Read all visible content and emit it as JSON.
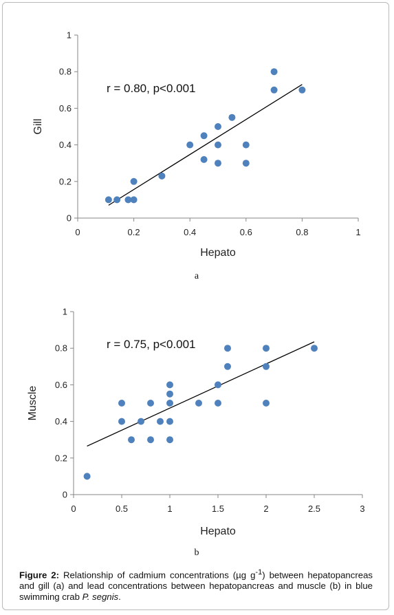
{
  "colors": {
    "point": "#4f81bd",
    "trendline": "#000000",
    "axis": "#868686"
  },
  "chart_data": [
    {
      "type": "scatter",
      "panel_label": "a",
      "xlabel": "Hepato",
      "ylabel": "Gill",
      "xlim": [
        0,
        1
      ],
      "ylim": [
        0,
        1
      ],
      "xticks": [
        "0",
        "0.2",
        "0.4",
        "0.6",
        "0.8",
        "1"
      ],
      "yticks": [
        "0",
        "0.2",
        "0.4",
        "0.6",
        "0.8",
        "1"
      ],
      "annotation": "r = 0.80, p<0.001",
      "trendline": [
        [
          0.11,
          0.07
        ],
        [
          0.8,
          0.73
        ]
      ],
      "points": [
        [
          0.11,
          0.1
        ],
        [
          0.14,
          0.1
        ],
        [
          0.18,
          0.1
        ],
        [
          0.2,
          0.1
        ],
        [
          0.2,
          0.2
        ],
        [
          0.3,
          0.23
        ],
        [
          0.4,
          0.4
        ],
        [
          0.45,
          0.45
        ],
        [
          0.45,
          0.32
        ],
        [
          0.5,
          0.5
        ],
        [
          0.5,
          0.4
        ],
        [
          0.5,
          0.3
        ],
        [
          0.55,
          0.55
        ],
        [
          0.6,
          0.4
        ],
        [
          0.6,
          0.3
        ],
        [
          0.7,
          0.8
        ],
        [
          0.7,
          0.7
        ],
        [
          0.8,
          0.7
        ]
      ]
    },
    {
      "type": "scatter",
      "panel_label": "b",
      "xlabel": "Hepato",
      "ylabel": "Muscle",
      "xlim": [
        0,
        3
      ],
      "ylim": [
        0,
        1
      ],
      "xticks": [
        "0",
        "0.5",
        "1",
        "1.5",
        "2",
        "2.5",
        "3"
      ],
      "yticks": [
        "0",
        "0.2",
        "0.4",
        "0.6",
        "0.8",
        "1"
      ],
      "annotation": "r = 0.75, p<0.001",
      "trendline": [
        [
          0.14,
          0.265
        ],
        [
          2.5,
          0.835
        ]
      ],
      "points": [
        [
          0.14,
          0.1
        ],
        [
          0.5,
          0.5
        ],
        [
          0.5,
          0.4
        ],
        [
          0.6,
          0.3
        ],
        [
          0.7,
          0.4
        ],
        [
          0.8,
          0.5
        ],
        [
          0.8,
          0.3
        ],
        [
          0.9,
          0.4
        ],
        [
          1.0,
          0.6
        ],
        [
          1.0,
          0.55
        ],
        [
          1.0,
          0.5
        ],
        [
          1.0,
          0.4
        ],
        [
          1.0,
          0.3
        ],
        [
          1.3,
          0.5
        ],
        [
          1.5,
          0.6
        ],
        [
          1.5,
          0.5
        ],
        [
          1.6,
          0.8
        ],
        [
          1.6,
          0.7
        ],
        [
          2.0,
          0.8
        ],
        [
          2.0,
          0.7
        ],
        [
          2.0,
          0.5
        ],
        [
          2.5,
          0.8
        ]
      ]
    }
  ],
  "caption": {
    "label": "Figure 2:",
    "text_before": " Relationship of cadmium concentrations (µg g",
    "superscript": "-1",
    "text_after": ") between hepatopancreas and gill (a) and lead concentrations between hepatopancreas and muscle (b) in blue swimming crab ",
    "species": "P. segnis",
    "end": "."
  }
}
